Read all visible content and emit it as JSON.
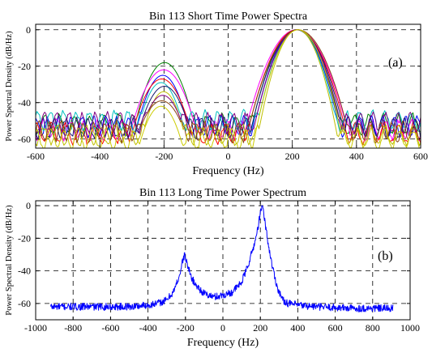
{
  "chart_data": [
    {
      "type": "line",
      "title": "Bin 113 Short Time Power Spectra",
      "xlabel": "Frequency (Hz)",
      "ylabel": "Power Spectral Density (dB/Hz)",
      "annotation": "(a)",
      "xlim": [
        -600,
        600
      ],
      "ylim": [
        -65,
        3
      ],
      "xticks": [
        -600,
        -400,
        -200,
        0,
        200,
        400,
        600
      ],
      "yticks": [
        0,
        -20,
        -40,
        -60
      ],
      "grid": true,
      "main_peak": {
        "x": 210,
        "y": 0,
        "width_hz": 60
      },
      "side_peak": {
        "x": -205,
        "width_hz": 38
      },
      "series": [
        {
          "color": "#008000",
          "side_peak_y": -18,
          "floor": -52
        },
        {
          "color": "#ff00ff",
          "side_peak_y": -22,
          "floor": -55
        },
        {
          "color": "#0000ff",
          "side_peak_y": -25,
          "floor": -53
        },
        {
          "color": "#ff0000",
          "side_peak_y": -27,
          "floor": -57
        },
        {
          "color": "#00bfbf",
          "side_peak_y": -29,
          "floor": -50
        },
        {
          "color": "#191970",
          "side_peak_y": -31,
          "floor": -54
        },
        {
          "color": "#bfbf00",
          "side_peak_y": -34,
          "floor": -58
        },
        {
          "color": "#800080",
          "side_peak_y": -36,
          "floor": -51
        },
        {
          "color": "#8b4513",
          "side_peak_y": -39,
          "floor": -56
        },
        {
          "color": "#cccc00",
          "side_peak_y": -42,
          "floor": -60
        }
      ]
    },
    {
      "type": "line",
      "title": "Bin 113 Long Time Power Spectrum",
      "xlabel": "Frequency (Hz)",
      "ylabel": "Power Spectral Density (dB/Hz)",
      "annotation": "(b)",
      "xlim": [
        -1000,
        1000
      ],
      "ylim": [
        -70,
        3
      ],
      "xticks": [
        -1000,
        -800,
        -600,
        -400,
        -200,
        0,
        200,
        400,
        600,
        800,
        1000
      ],
      "yticks": [
        0,
        -20,
        -40,
        -60
      ],
      "grid": true,
      "series": [
        {
          "color": "#0000ff",
          "x": [
            -920,
            -500,
            -400,
            -350,
            -300,
            -260,
            -230,
            -215,
            -205,
            -195,
            -175,
            -150,
            -100,
            -50,
            0,
            50,
            100,
            130,
            160,
            180,
            195,
            205,
            210,
            215,
            225,
            240,
            260,
            290,
            320,
            350,
            400,
            500,
            700,
            910
          ],
          "y": [
            -62,
            -62,
            -61,
            -60,
            -58,
            -52,
            -42,
            -34,
            -30,
            -34,
            -42,
            -48,
            -54,
            -56,
            -55,
            -53,
            -47,
            -38,
            -27,
            -18,
            -8,
            -2,
            0,
            -3,
            -10,
            -22,
            -35,
            -50,
            -58,
            -60,
            -61,
            -62,
            -63,
            -63
          ]
        }
      ]
    }
  ]
}
